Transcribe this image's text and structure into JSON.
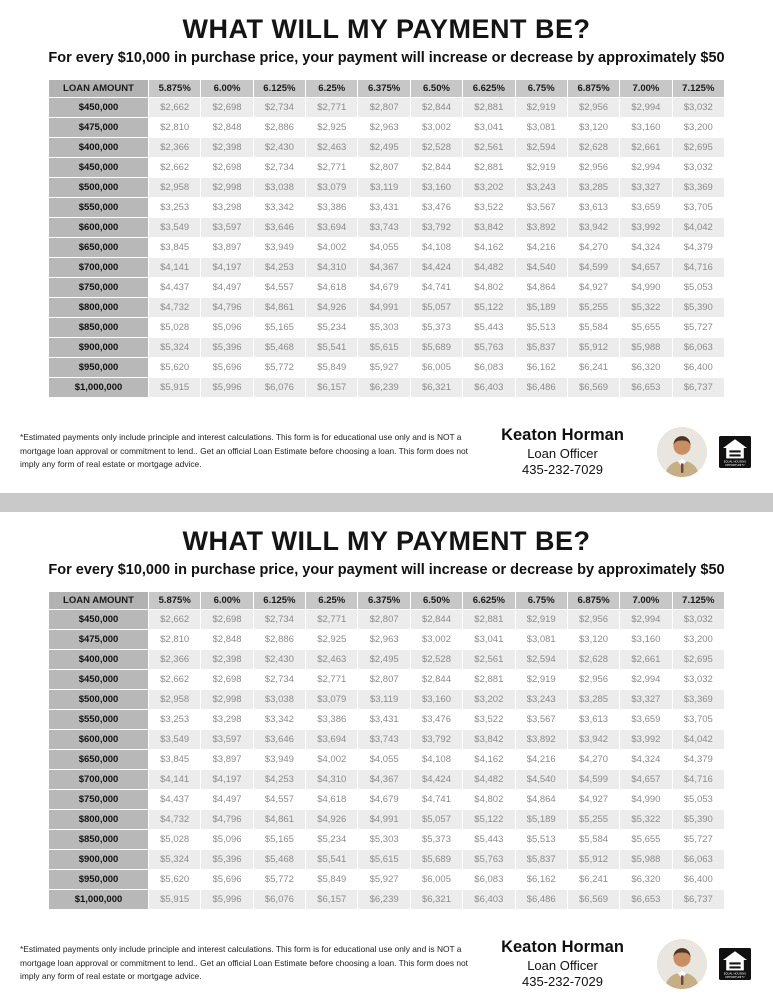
{
  "flyer": {
    "title": "WHAT WILL MY PAYMENT BE?",
    "subtitle": "For every $10,000 in purchase price, your payment will increase or decrease by approximately $50",
    "table": {
      "loan_amount_header": "LOAN AMOUNT",
      "rate_headers": [
        "5.875%",
        "6.00%",
        "6.125%",
        "6.25%",
        "6.375%",
        "6.50%",
        "6.625%",
        "6.75%",
        "6.875%",
        "7.00%",
        "7.125%"
      ],
      "rows": [
        {
          "loan_amount": "$450,000",
          "payments": [
            "$2,662",
            "$2,698",
            "$2,734",
            "$2,771",
            "$2,807",
            "$2,844",
            "$2,881",
            "$2,919",
            "$2,956",
            "$2,994",
            "$3,032"
          ]
        },
        {
          "loan_amount": "$475,000",
          "payments": [
            "$2,810",
            "$2,848",
            "$2,886",
            "$2,925",
            "$2,963",
            "$3,002",
            "$3,041",
            "$3,081",
            "$3,120",
            "$3,160",
            "$3,200"
          ]
        },
        {
          "loan_amount": "$400,000",
          "payments": [
            "$2,366",
            "$2,398",
            "$2,430",
            "$2,463",
            "$2,495",
            "$2,528",
            "$2,561",
            "$2,594",
            "$2,628",
            "$2,661",
            "$2,695"
          ]
        },
        {
          "loan_amount": "$450,000",
          "payments": [
            "$2,662",
            "$2,698",
            "$2,734",
            "$2,771",
            "$2,807",
            "$2,844",
            "$2,881",
            "$2,919",
            "$2,956",
            "$2,994",
            "$3,032"
          ]
        },
        {
          "loan_amount": "$500,000",
          "payments": [
            "$2,958",
            "$2,998",
            "$3,038",
            "$3,079",
            "$3,119",
            "$3,160",
            "$3,202",
            "$3,243",
            "$3,285",
            "$3,327",
            "$3,369"
          ]
        },
        {
          "loan_amount": "$550,000",
          "payments": [
            "$3,253",
            "$3,298",
            "$3,342",
            "$3,386",
            "$3,431",
            "$3,476",
            "$3,522",
            "$3,567",
            "$3,613",
            "$3,659",
            "$3,705"
          ]
        },
        {
          "loan_amount": "$600,000",
          "payments": [
            "$3,549",
            "$3,597",
            "$3,646",
            "$3,694",
            "$3,743",
            "$3,792",
            "$3,842",
            "$3,892",
            "$3,942",
            "$3,992",
            "$4,042"
          ]
        },
        {
          "loan_amount": "$650,000",
          "payments": [
            "$3,845",
            "$3,897",
            "$3,949",
            "$4,002",
            "$4,055",
            "$4,108",
            "$4,162",
            "$4,216",
            "$4,270",
            "$4,324",
            "$4,379"
          ]
        },
        {
          "loan_amount": "$700,000",
          "payments": [
            "$4,141",
            "$4,197",
            "$4,253",
            "$4,310",
            "$4,367",
            "$4,424",
            "$4,482",
            "$4,540",
            "$4,599",
            "$4,657",
            "$4,716"
          ]
        },
        {
          "loan_amount": "$750,000",
          "payments": [
            "$4,437",
            "$4,497",
            "$4,557",
            "$4,618",
            "$4,679",
            "$4,741",
            "$4,802",
            "$4,864",
            "$4,927",
            "$4,990",
            "$5,053"
          ]
        },
        {
          "loan_amount": "$800,000",
          "payments": [
            "$4,732",
            "$4,796",
            "$4,861",
            "$4,926",
            "$4,991",
            "$5,057",
            "$5,122",
            "$5,189",
            "$5,255",
            "$5,322",
            "$5,390"
          ]
        },
        {
          "loan_amount": "$850,000",
          "payments": [
            "$5,028",
            "$5,096",
            "$5,165",
            "$5,234",
            "$5,303",
            "$5,373",
            "$5,443",
            "$5,513",
            "$5,584",
            "$5,655",
            "$5,727"
          ]
        },
        {
          "loan_amount": "$900,000",
          "payments": [
            "$5,324",
            "$5,396",
            "$5,468",
            "$5,541",
            "$5,615",
            "$5,689",
            "$5,763",
            "$5,837",
            "$5,912",
            "$5,988",
            "$6,063"
          ]
        },
        {
          "loan_amount": "$950,000",
          "payments": [
            "$5,620",
            "$5,696",
            "$5,772",
            "$5,849",
            "$5,927",
            "$6,005",
            "$6,083",
            "$6,162",
            "$6,241",
            "$6,320",
            "$6,400"
          ]
        },
        {
          "loan_amount": "$1,000,000",
          "payments": [
            "$5,915",
            "$5,996",
            "$6,076",
            "$6,157",
            "$6,239",
            "$6,321",
            "$6,403",
            "$6,486",
            "$6,569",
            "$6,653",
            "$6,737"
          ]
        }
      ]
    },
    "disclaimer": "*Estimated payments only include principle and interest calculations. This form is for educational use only and is NOT a mortgage loan approval or commitment to lend.. Get an official Loan Estimate before choosing a loan.   This form does not imply any form of real estate or mortgage advice.",
    "contact": {
      "name": "Keaton Horman",
      "role": "Loan Officer",
      "phone": "435-232-7029"
    }
  }
}
